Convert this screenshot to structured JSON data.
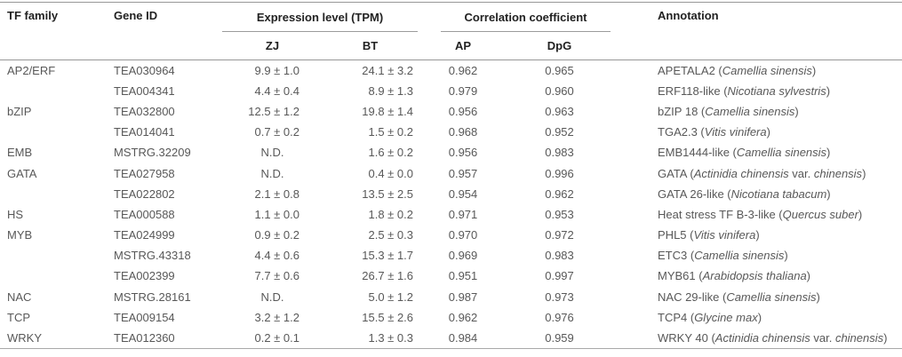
{
  "colors": {
    "background": "#ffffff",
    "rule_gray": "#979797",
    "header_text": "#222222",
    "body_text": "#585858"
  },
  "table": {
    "header": {
      "tf_family": "TF family",
      "gene_id": "Gene ID",
      "expression_group": "Expression level (TPM)",
      "zj": "ZJ",
      "bt": "BT",
      "correlation_group": "Correlation coefficient",
      "ap": "AP",
      "dpg": "DpG",
      "annotation": "Annotation"
    },
    "rows": [
      {
        "tf_family": "AP2/ERF",
        "gene_id": "TEA030964",
        "zj": "9.9 ± 1.0",
        "bt": "24.1 ± 3.2",
        "ap": "0.962",
        "dpg": "0.965",
        "annotation": [
          {
            "t": "APETALA2 (",
            "i": false
          },
          {
            "t": "Camellia sinensis",
            "i": true
          },
          {
            "t": ")",
            "i": false
          }
        ]
      },
      {
        "tf_family": "",
        "gene_id": "TEA004341",
        "zj": "4.4 ± 0.4",
        "bt": "8.9 ± 1.3",
        "ap": "0.979",
        "dpg": "0.960",
        "annotation": [
          {
            "t": "ERF118-like (",
            "i": false
          },
          {
            "t": "Nicotiana sylvestris",
            "i": true
          },
          {
            "t": ")",
            "i": false
          }
        ]
      },
      {
        "tf_family": "bZIP",
        "gene_id": "TEA032800",
        "zj": "12.5 ± 1.2",
        "bt": "19.8 ± 1.4",
        "ap": "0.956",
        "dpg": "0.963",
        "annotation": [
          {
            "t": "bZIP 18 (",
            "i": false
          },
          {
            "t": "Camellia sinensis",
            "i": true
          },
          {
            "t": ")",
            "i": false
          }
        ]
      },
      {
        "tf_family": "",
        "gene_id": "TEA014041",
        "zj": "0.7 ± 0.2",
        "bt": "1.5 ± 0.2",
        "ap": "0.968",
        "dpg": "0.952",
        "annotation": [
          {
            "t": "TGA2.3 (",
            "i": false
          },
          {
            "t": "Vitis vinifera",
            "i": true
          },
          {
            "t": ")",
            "i": false
          }
        ]
      },
      {
        "tf_family": "EMB",
        "gene_id": "MSTRG.32209",
        "zj": "N.D.",
        "bt": "1.6 ± 0.2",
        "ap": "0.956",
        "dpg": "0.983",
        "annotation": [
          {
            "t": "EMB1444-like (",
            "i": false
          },
          {
            "t": "Camellia sinensis",
            "i": true
          },
          {
            "t": ")",
            "i": false
          }
        ]
      },
      {
        "tf_family": "GATA",
        "gene_id": "TEA027958",
        "zj": "N.D.",
        "bt": "0.4 ± 0.0",
        "ap": "0.957",
        "dpg": "0.996",
        "annotation": [
          {
            "t": "GATA (",
            "i": false
          },
          {
            "t": "Actinidia chinensis",
            "i": true
          },
          {
            "t": " var. ",
            "i": false
          },
          {
            "t": "chinensis",
            "i": true
          },
          {
            "t": ")",
            "i": false
          }
        ]
      },
      {
        "tf_family": "",
        "gene_id": "TEA022802",
        "zj": "2.1 ± 0.8",
        "bt": "13.5 ± 2.5",
        "ap": "0.954",
        "dpg": "0.962",
        "annotation": [
          {
            "t": "GATA 26-like (",
            "i": false
          },
          {
            "t": "Nicotiana tabacum",
            "i": true
          },
          {
            "t": ")",
            "i": false
          }
        ]
      },
      {
        "tf_family": "HS",
        "gene_id": "TEA000588",
        "zj": "1.1 ± 0.0",
        "bt": "1.8 ± 0.2",
        "ap": "0.971",
        "dpg": "0.953",
        "annotation": [
          {
            "t": "Heat stress TF B-3-like (",
            "i": false
          },
          {
            "t": "Quercus suber",
            "i": true
          },
          {
            "t": ")",
            "i": false
          }
        ]
      },
      {
        "tf_family": "MYB",
        "gene_id": "TEA024999",
        "zj": "0.9 ± 0.2",
        "bt": "2.5 ± 0.3",
        "ap": "0.970",
        "dpg": "0.972",
        "annotation": [
          {
            "t": "PHL5 (",
            "i": false
          },
          {
            "t": "Vitis vinifera",
            "i": true
          },
          {
            "t": ")",
            "i": false
          }
        ]
      },
      {
        "tf_family": "",
        "gene_id": "MSTRG.43318",
        "zj": "4.4 ± 0.6",
        "bt": "15.3 ± 1.7",
        "ap": "0.969",
        "dpg": "0.983",
        "annotation": [
          {
            "t": "ETC3 (",
            "i": false
          },
          {
            "t": "Camellia sinensis",
            "i": true
          },
          {
            "t": ")",
            "i": false
          }
        ]
      },
      {
        "tf_family": "",
        "gene_id": "TEA002399",
        "zj": "7.7 ± 0.6",
        "bt": "26.7 ± 1.6",
        "ap": "0.951",
        "dpg": "0.997",
        "annotation": [
          {
            "t": "MYB61 (",
            "i": false
          },
          {
            "t": "Arabidopsis thaliana",
            "i": true
          },
          {
            "t": ")",
            "i": false
          }
        ]
      },
      {
        "tf_family": "NAC",
        "gene_id": "MSTRG.28161",
        "zj": "N.D.",
        "bt": "5.0 ± 1.2",
        "ap": "0.987",
        "dpg": "0.973",
        "annotation": [
          {
            "t": "NAC 29-like (",
            "i": false
          },
          {
            "t": "Camellia sinensis",
            "i": true
          },
          {
            "t": ")",
            "i": false
          }
        ]
      },
      {
        "tf_family": "TCP",
        "gene_id": "TEA009154",
        "zj": "3.2 ± 1.2",
        "bt": "15.5 ± 2.6",
        "ap": "0.962",
        "dpg": "0.976",
        "annotation": [
          {
            "t": "TCP4 (",
            "i": false
          },
          {
            "t": "Glycine max",
            "i": true
          },
          {
            "t": ")",
            "i": false
          }
        ]
      },
      {
        "tf_family": "WRKY",
        "gene_id": "TEA012360",
        "zj": "0.2 ± 0.1",
        "bt": "1.3 ± 0.3",
        "ap": "0.984",
        "dpg": "0.959",
        "annotation": [
          {
            "t": "WRKY 40 (",
            "i": false
          },
          {
            "t": "Actinidia chinensis",
            "i": true
          },
          {
            "t": " var. ",
            "i": false
          },
          {
            "t": "chinensis",
            "i": true
          },
          {
            "t": ")",
            "i": false
          }
        ]
      }
    ]
  }
}
